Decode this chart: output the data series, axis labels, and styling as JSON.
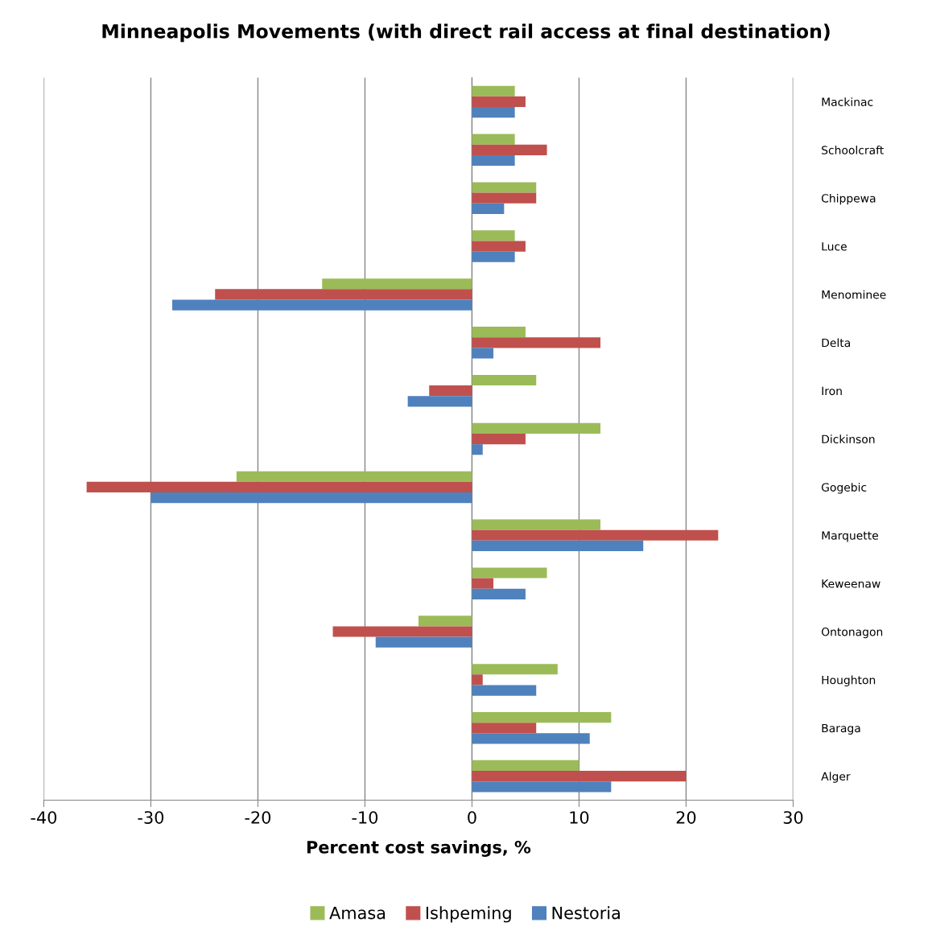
{
  "chart_data": {
    "type": "bar",
    "orientation": "horizontal",
    "title": "Minneapolis Movements (with direct rail access at final destination)",
    "xlabel": "Percent cost savings, %",
    "categories": [
      "Mackinac",
      "Schoolcraft",
      "Chippewa",
      "Luce",
      "Menominee",
      "Delta",
      "Iron",
      "Dickinson",
      "Gogebic",
      "Marquette",
      "Keweenaw",
      "Ontonagon",
      "Houghton",
      "Baraga",
      "Alger"
    ],
    "series": [
      {
        "name": "Amasa",
        "color": "#9bbb59",
        "values": [
          4,
          4,
          6,
          4,
          -14,
          5,
          6,
          12,
          -22,
          12,
          7,
          -5,
          8,
          13,
          10
        ]
      },
      {
        "name": "Ishpeming",
        "color": "#c0504d",
        "values": [
          5,
          7,
          6,
          5,
          -24,
          12,
          -4,
          5,
          -36,
          23,
          2,
          -13,
          1,
          6,
          20
        ]
      },
      {
        "name": "Nestoria",
        "color": "#4f81bd",
        "values": [
          4,
          4,
          3,
          4,
          -28,
          2,
          -6,
          1,
          -30,
          16,
          5,
          -9,
          6,
          11,
          13
        ]
      }
    ],
    "xlim": [
      -40,
      30
    ],
    "xticks": [
      -40,
      -30,
      -20,
      -10,
      0,
      10,
      20,
      30
    ],
    "grid": "x",
    "legend": "bottom"
  }
}
